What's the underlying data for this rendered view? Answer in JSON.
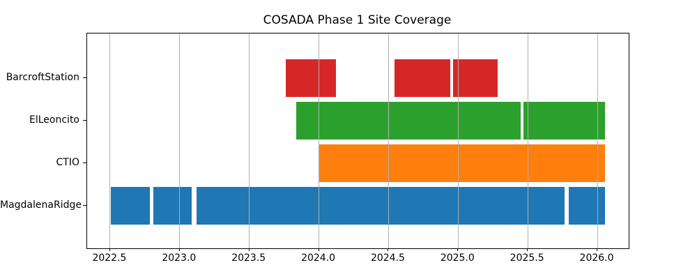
{
  "figure": {
    "background_color": "#ffffff",
    "text_color": "#000000",
    "gridline_color": "#b0b0b0",
    "spine_color": "#000000"
  },
  "chart_data": {
    "type": "bar",
    "subtype": "broken-horizontal-bar-timeline",
    "title": "COSADA Phase 1 Site Coverage",
    "xlabel": "",
    "ylabel": "",
    "xlim": [
      2022.335,
      2026.225
    ],
    "xticks": [
      2022.5,
      2023.0,
      2023.5,
      2024.0,
      2024.5,
      2025.0,
      2025.5,
      2026.0
    ],
    "xtick_labels": [
      "2022.5",
      "2023.0",
      "2023.5",
      "2024.0",
      "2024.5",
      "2025.0",
      "2025.5",
      "2026.0"
    ],
    "grid": "vertical gridlines at each x tick, drawn above bars",
    "legend": "none",
    "categories_top_to_bottom": [
      "BarcroftStation",
      "ElLeoncito",
      "CTIO",
      "MagdalenaRidge"
    ],
    "series": [
      {
        "name": "BarcroftStation",
        "color": "#d62728",
        "intervals": [
          [
            2023.76,
            2024.12
          ],
          [
            2024.545,
            2024.945
          ],
          [
            2024.965,
            2025.285
          ]
        ]
      },
      {
        "name": "ElLeoncito",
        "color": "#2ca02c",
        "intervals": [
          [
            2023.835,
            2025.45
          ],
          [
            2025.47,
            2026.055
          ]
        ]
      },
      {
        "name": "CTIO",
        "color": "#ff7f0e",
        "intervals": [
          [
            2023.995,
            2026.055
          ]
        ]
      },
      {
        "name": "MagdalenaRidge",
        "color": "#1f77b4",
        "intervals": [
          [
            2022.505,
            2022.785
          ],
          [
            2022.81,
            2023.085
          ],
          [
            2023.12,
            2025.765
          ],
          [
            2025.795,
            2026.055
          ]
        ]
      }
    ]
  }
}
